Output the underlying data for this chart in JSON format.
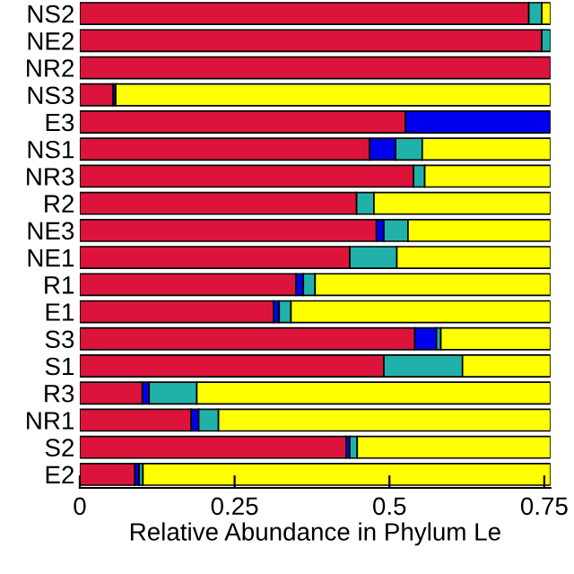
{
  "chart_data": {
    "type": "bar",
    "orientation": "horizontal",
    "stacked": true,
    "xlabel": "Relative Abundance in Phylum Le",
    "categories": [
      "NS2",
      "NE2",
      "NR2",
      "NS3",
      "E3",
      "NS1",
      "NR3",
      "R2",
      "NE3",
      "NE1",
      "R1",
      "E1",
      "S3",
      "S1",
      "R3",
      "NR1",
      "S2",
      "E2"
    ],
    "series": [
      {
        "color": "#dc143c",
        "values": [
          0.725,
          0.746,
          0.76,
          0.054,
          0.526,
          0.468,
          0.539,
          0.447,
          0.479,
          0.436,
          0.349,
          0.313,
          0.541,
          0.491,
          0.101,
          0.18,
          0.43,
          0.089
        ]
      },
      {
        "color": "#0000ee",
        "values": [
          null,
          null,
          null,
          0.004,
          0.234,
          0.042,
          null,
          null,
          0.012,
          null,
          0.012,
          0.009,
          0.035,
          null,
          0.011,
          0.012,
          0.006,
          0.007
        ]
      },
      {
        "color": "#20b2aa",
        "values": [
          0.021,
          0.014,
          null,
          null,
          null,
          0.043,
          0.018,
          0.028,
          0.039,
          0.076,
          0.019,
          0.019,
          0.007,
          0.127,
          0.077,
          0.032,
          0.012,
          0.006
        ]
      },
      {
        "color": "#ffff00",
        "values": [
          0.014,
          null,
          null,
          0.702,
          null,
          0.207,
          0.203,
          0.285,
          0.23,
          0.248,
          0.38,
          0.419,
          0.177,
          0.142,
          0.571,
          0.536,
          0.312,
          0.658
        ]
      }
    ],
    "xlim": [
      0,
      0.76
    ],
    "xticks": [
      0,
      0.25,
      0.5,
      0.75
    ],
    "grid": false,
    "legend": false
  }
}
